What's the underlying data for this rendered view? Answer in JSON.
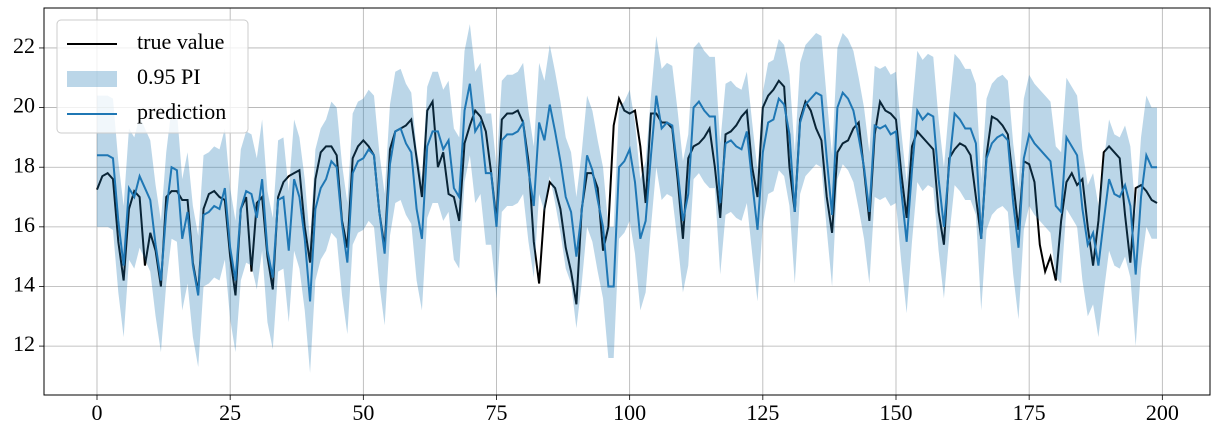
{
  "chart_data": {
    "type": "line",
    "x": [
      0,
      1,
      2,
      3,
      4,
      5,
      6,
      7,
      8,
      9,
      10,
      11,
      12,
      13,
      14,
      15,
      16,
      17,
      18,
      19,
      20,
      21,
      22,
      23,
      24,
      25,
      26,
      27,
      28,
      29,
      30,
      31,
      32,
      33,
      34,
      35,
      36,
      37,
      38,
      39,
      40,
      41,
      42,
      43,
      44,
      45,
      46,
      47,
      48,
      49,
      50,
      51,
      52,
      53,
      54,
      55,
      56,
      57,
      58,
      59,
      60,
      61,
      62,
      63,
      64,
      65,
      66,
      67,
      68,
      69,
      70,
      71,
      72,
      73,
      74,
      75,
      76,
      77,
      78,
      79,
      80,
      81,
      82,
      83,
      84,
      85,
      86,
      87,
      88,
      89,
      90,
      91,
      92,
      93,
      94,
      95,
      96,
      97,
      98,
      99,
      100,
      101,
      102,
      103,
      104,
      105,
      106,
      107,
      108,
      109,
      110,
      111,
      112,
      113,
      114,
      115,
      116,
      117,
      118,
      119,
      120,
      121,
      122,
      123,
      124,
      125,
      126,
      127,
      128,
      129,
      130,
      131,
      132,
      133,
      134,
      135,
      136,
      137,
      138,
      139,
      140,
      141,
      142,
      143,
      144,
      145,
      146,
      147,
      148,
      149,
      150,
      151,
      152,
      153,
      154,
      155,
      156,
      157,
      158,
      159,
      160,
      161,
      162,
      163,
      164,
      165,
      166,
      167,
      168,
      169,
      170,
      171,
      172,
      173,
      174,
      175,
      176,
      177,
      178,
      179,
      180,
      181,
      182,
      183,
      184,
      185,
      186,
      187,
      188,
      189,
      190,
      191,
      192,
      193,
      194,
      195,
      196,
      197,
      198,
      199
    ],
    "series": [
      {
        "name": "true value",
        "color": "#000000",
        "values": [
          17.25,
          17.7,
          17.8,
          17.6,
          15.5,
          14.2,
          16.6,
          17.2,
          17.0,
          14.7,
          15.8,
          15.2,
          14.0,
          17.0,
          17.2,
          17.2,
          16.9,
          16.9,
          14.8,
          13.8,
          16.6,
          17.1,
          17.2,
          17.0,
          16.9,
          15.0,
          13.7,
          16.6,
          17.0,
          14.5,
          16.8,
          17.0,
          15.0,
          13.9,
          17.0,
          17.5,
          17.7,
          17.8,
          17.9,
          16.0,
          14.8,
          17.6,
          18.5,
          18.7,
          18.7,
          18.4,
          16.2,
          15.3,
          18.3,
          18.7,
          18.9,
          18.7,
          18.4,
          16.5,
          15.3,
          18.6,
          19.2,
          19.3,
          19.4,
          19.6,
          18.3,
          17.0,
          19.9,
          20.2,
          18.0,
          18.5,
          17.1,
          17.0,
          16.2,
          18.8,
          19.4,
          19.9,
          19.7,
          19.2,
          17.8,
          16.2,
          19.6,
          19.8,
          19.8,
          19.9,
          19.5,
          18.2,
          15.5,
          14.1,
          16.6,
          17.5,
          17.3,
          16.6,
          15.3,
          14.5,
          13.4,
          16.6,
          17.8,
          17.8,
          17.3,
          15.2,
          16.0,
          19.4,
          20.3,
          19.9,
          19.8,
          19.9,
          18.7,
          16.8,
          19.8,
          19.8,
          19.5,
          19.5,
          19.3,
          17.6,
          15.6,
          18.3,
          18.7,
          18.8,
          19.0,
          19.3,
          18.0,
          16.3,
          19.1,
          19.2,
          19.4,
          19.7,
          19.9,
          18.0,
          17.0,
          20.0,
          20.4,
          20.6,
          20.9,
          20.7,
          18.0,
          16.5,
          19.6,
          20.2,
          19.9,
          19.3,
          18.9,
          17.0,
          15.8,
          18.5,
          18.8,
          18.9,
          19.3,
          19.5,
          17.9,
          16.2,
          19.1,
          20.2,
          19.9,
          19.8,
          19.6,
          17.8,
          16.3,
          18.7,
          19.2,
          19.0,
          18.8,
          18.6,
          16.5,
          15.4,
          18.3,
          18.6,
          18.8,
          18.7,
          18.4,
          17.0,
          15.6,
          18.4,
          19.7,
          19.6,
          19.4,
          19.1,
          17.5,
          15.9,
          18.2,
          18.1,
          17.5,
          15.4,
          14.5,
          15.0,
          14.2,
          16.2,
          17.5,
          17.8,
          17.4,
          17.6,
          16.0,
          14.7,
          16.2,
          18.5,
          18.7,
          18.5,
          18.3,
          16.4,
          14.8,
          17.3,
          17.4,
          17.2,
          16.9,
          16.8
        ]
      },
      {
        "name": "0.95 PI",
        "color": "#1f77b4",
        "lower": [
          16.0,
          16.0,
          16.0,
          15.9,
          13.8,
          12.3,
          14.9,
          14.6,
          15.3,
          14.9,
          14.5,
          13.0,
          11.8,
          14.1,
          15.6,
          15.5,
          13.2,
          14.1,
          12.3,
          11.3,
          14.0,
          14.1,
          14.3,
          14.2,
          14.9,
          12.9,
          11.8,
          14.2,
          14.8,
          14.7,
          13.9,
          15.2,
          12.8,
          11.9,
          14.5,
          14.6,
          12.8,
          15.2,
          14.6,
          13.2,
          11.1,
          14.2,
          14.9,
          15.2,
          15.8,
          15.6,
          13.7,
          12.4,
          15.4,
          15.8,
          15.9,
          16.2,
          16.0,
          14.1,
          12.7,
          15.7,
          16.8,
          16.9,
          16.4,
          16.1,
          14.2,
          13.2,
          16.3,
          16.8,
          16.8,
          16.2,
          16.5,
          14.9,
          14.6,
          17.5,
          18.4,
          16.8,
          17.1,
          15.4,
          15.4,
          13.6,
          16.5,
          16.7,
          16.7,
          16.8,
          17.1,
          15.5,
          14.3,
          17.1,
          16.5,
          17.7,
          16.8,
          15.8,
          14.6,
          14.1,
          12.6,
          14.1,
          16.0,
          15.5,
          14.5,
          13.6,
          11.6,
          11.6,
          15.6,
          15.8,
          16.2,
          15.1,
          13.2,
          13.8,
          16.0,
          18.0,
          16.9,
          17.1,
          17.0,
          15.5,
          13.8,
          14.7,
          17.6,
          17.8,
          17.5,
          17.3,
          17.3,
          14.4,
          16.4,
          16.5,
          16.3,
          16.2,
          16.8,
          15.1,
          13.5,
          16.1,
          17.1,
          17.2,
          17.9,
          17.7,
          16.7,
          14.1,
          17.1,
          17.7,
          17.9,
          18.1,
          18.0,
          15.9,
          14.0,
          17.6,
          18.1,
          17.9,
          17.5,
          16.6,
          15.6,
          14.1,
          17.0,
          16.9,
          17.0,
          16.7,
          16.8,
          14.8,
          13.1,
          15.5,
          17.5,
          17.2,
          17.4,
          17.3,
          15.2,
          13.6,
          15.7,
          17.4,
          17.2,
          16.9,
          16.9,
          16.4,
          13.2,
          15.9,
          16.4,
          16.6,
          16.7,
          16.5,
          14.4,
          12.9,
          15.9,
          16.7,
          16.4,
          16.2,
          16.0,
          15.8,
          14.3,
          14.1,
          16.6,
          16.3,
          16.0,
          14.2,
          13.0,
          13.4,
          12.3,
          13.8,
          15.2,
          14.7,
          14.6,
          15.0,
          14.3,
          12.0,
          14.6,
          16.0,
          15.6,
          15.6
        ],
        "upper": [
          20.4,
          20.4,
          20.4,
          20.3,
          18.2,
          16.7,
          19.3,
          19.0,
          19.7,
          19.3,
          18.9,
          17.4,
          16.2,
          18.5,
          20.0,
          19.9,
          17.6,
          18.5,
          16.7,
          15.7,
          18.4,
          18.5,
          18.7,
          18.6,
          19.3,
          17.3,
          16.2,
          18.6,
          19.2,
          19.1,
          18.3,
          19.6,
          17.2,
          16.3,
          18.9,
          19.0,
          17.2,
          19.6,
          19.0,
          17.6,
          15.5,
          18.6,
          19.3,
          19.6,
          20.2,
          20.0,
          18.1,
          16.8,
          19.8,
          20.2,
          20.3,
          20.6,
          20.4,
          18.5,
          17.1,
          20.1,
          21.2,
          21.3,
          20.8,
          20.5,
          18.6,
          17.6,
          20.7,
          21.2,
          21.2,
          20.6,
          20.9,
          19.3,
          19.0,
          21.9,
          22.8,
          21.2,
          21.5,
          19.8,
          19.8,
          18.0,
          20.9,
          21.1,
          21.1,
          21.2,
          21.5,
          19.9,
          18.7,
          21.5,
          20.9,
          22.1,
          21.2,
          20.2,
          19.0,
          18.5,
          17.0,
          18.5,
          20.4,
          19.9,
          18.9,
          18.0,
          16.0,
          16.0,
          20.0,
          20.2,
          20.6,
          19.5,
          17.6,
          18.2,
          20.4,
          22.4,
          21.3,
          21.5,
          21.4,
          19.9,
          18.2,
          19.1,
          22.0,
          22.2,
          21.9,
          21.7,
          21.7,
          18.8,
          20.8,
          20.9,
          20.7,
          20.6,
          21.2,
          19.5,
          17.9,
          20.5,
          21.5,
          21.6,
          22.3,
          22.1,
          21.1,
          18.5,
          21.5,
          22.1,
          22.3,
          22.5,
          22.4,
          20.3,
          18.4,
          22.0,
          22.5,
          22.3,
          21.9,
          21.0,
          20.0,
          18.5,
          21.4,
          21.3,
          21.4,
          21.1,
          21.2,
          19.2,
          17.5,
          19.9,
          21.9,
          21.6,
          21.8,
          21.7,
          19.6,
          18.0,
          20.1,
          21.8,
          21.6,
          21.3,
          21.3,
          20.8,
          17.6,
          20.3,
          20.8,
          21.0,
          21.1,
          20.9,
          18.8,
          17.3,
          20.3,
          21.1,
          20.8,
          20.6,
          20.4,
          20.2,
          18.7,
          18.5,
          21.0,
          20.7,
          20.4,
          18.6,
          17.4,
          17.8,
          16.7,
          18.2,
          19.6,
          19.1,
          19.0,
          19.4,
          18.7,
          16.4,
          19.0,
          20.4,
          20.0,
          20.0
        ]
      },
      {
        "name": "prediction",
        "color": "#1f77b4",
        "values": [
          18.4,
          18.4,
          18.4,
          18.3,
          16.2,
          14.7,
          17.3,
          17.0,
          17.7,
          17.3,
          16.9,
          15.4,
          14.2,
          16.5,
          18.0,
          17.9,
          15.6,
          16.5,
          14.7,
          13.7,
          16.4,
          16.5,
          16.7,
          16.6,
          17.3,
          15.3,
          14.2,
          16.6,
          17.2,
          17.1,
          16.3,
          17.6,
          15.2,
          14.3,
          16.9,
          17.0,
          15.2,
          17.6,
          17.0,
          15.6,
          13.5,
          16.6,
          17.3,
          17.6,
          18.2,
          18.0,
          16.1,
          14.8,
          17.8,
          18.2,
          18.3,
          18.6,
          18.4,
          16.5,
          15.1,
          18.1,
          19.2,
          19.3,
          18.8,
          18.5,
          16.6,
          15.6,
          18.7,
          19.2,
          19.2,
          18.6,
          18.9,
          17.3,
          17.0,
          19.9,
          20.8,
          19.2,
          19.5,
          17.8,
          17.8,
          16.0,
          18.9,
          19.1,
          19.1,
          19.2,
          19.5,
          17.9,
          16.7,
          19.5,
          18.9,
          20.1,
          19.2,
          18.2,
          17.0,
          16.5,
          15.0,
          16.5,
          18.4,
          17.9,
          16.9,
          16.0,
          14.0,
          14.0,
          18.0,
          18.2,
          18.6,
          17.5,
          15.6,
          16.2,
          18.4,
          20.4,
          19.3,
          19.5,
          19.4,
          17.9,
          16.2,
          17.1,
          20.0,
          20.2,
          19.9,
          19.7,
          19.7,
          16.8,
          18.8,
          18.9,
          18.7,
          18.6,
          19.2,
          17.5,
          15.9,
          18.5,
          19.5,
          19.6,
          20.3,
          20.1,
          19.1,
          16.5,
          19.5,
          20.1,
          20.3,
          20.5,
          20.4,
          18.3,
          16.4,
          20.0,
          20.5,
          20.3,
          19.9,
          19.0,
          18.0,
          16.5,
          19.4,
          19.3,
          19.4,
          19.1,
          19.2,
          17.2,
          15.5,
          17.9,
          19.9,
          19.6,
          19.8,
          19.7,
          17.6,
          16.0,
          18.1,
          19.8,
          19.6,
          19.3,
          19.3,
          18.8,
          15.6,
          18.3,
          18.8,
          19.0,
          19.1,
          18.9,
          16.8,
          15.3,
          18.3,
          19.1,
          18.8,
          18.6,
          18.4,
          18.2,
          16.7,
          16.5,
          19.0,
          18.7,
          18.4,
          16.6,
          15.4,
          15.8,
          14.7,
          16.2,
          17.6,
          17.1,
          17.0,
          17.4,
          16.7,
          14.4,
          17.0,
          18.4,
          18.0,
          18.0
        ]
      }
    ],
    "xlim": [
      -9.95,
      208.95
    ],
    "ylim": [
      10.36,
      23.34
    ],
    "xticks": [
      0,
      25,
      50,
      75,
      100,
      125,
      150,
      175,
      200
    ],
    "yticks": [
      12,
      14,
      16,
      18,
      20,
      22
    ],
    "grid": true,
    "legend": "upper left"
  }
}
